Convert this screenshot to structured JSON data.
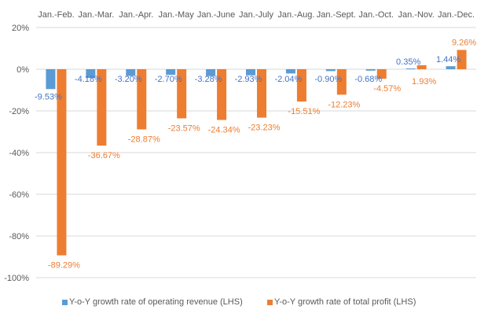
{
  "chart_data": {
    "type": "bar",
    "title": "",
    "xlabel": "",
    "ylabel": "",
    "ylim": [
      -100,
      20
    ],
    "yticks": [
      20,
      0,
      -20,
      -40,
      -60,
      -80,
      -100
    ],
    "ytick_labels": [
      "20%",
      "0%",
      "-20%",
      "-40%",
      "-60%",
      "-80%",
      "-100%"
    ],
    "grid": true,
    "x_axis_position": "top",
    "legend_position": "bottom",
    "categories": [
      "Jan.-Feb.",
      "Jan.-Mar.",
      "Jan.-Apr.",
      "Jan.-May",
      "Jan.-June",
      "Jan.-July",
      "Jan.-Aug.",
      "Jan.-Sept.",
      "Jan.-Oct.",
      "Jan.-Nov.",
      "Jan.-Dec."
    ],
    "series": [
      {
        "name": "Y-o-Y growth rate of operating revenue (LHS)",
        "color": "#5B9BD5",
        "label_color": "#4472C4",
        "values": [
          -9.53,
          -4.18,
          -3.2,
          -2.7,
          -3.28,
          -2.93,
          -2.04,
          -0.9,
          -0.68,
          0.35,
          1.44
        ],
        "labels": [
          "-9.53%",
          "-4.18%",
          "-3.20%",
          "-2.70%",
          "-3.28%",
          "-2.93%",
          "-2.04%",
          "-0.90%",
          "-0.68%",
          "0.35%",
          "1.44%"
        ]
      },
      {
        "name": "Y-o-Y growth rate of total profit (LHS)",
        "color": "#ED7D31",
        "label_color": "#ED7D31",
        "values": [
          -89.29,
          -36.67,
          -28.87,
          -23.57,
          -24.34,
          -23.23,
          -15.51,
          -12.23,
          -4.57,
          1.93,
          9.26
        ],
        "labels": [
          "-89.29%",
          "-36.67%",
          "-28.87%",
          "-23.57%",
          "-24.34%",
          "-23.23%",
          "-15.51%",
          "-12.23%",
          "-4.57%",
          "1.93%",
          "9.26%"
        ]
      }
    ]
  }
}
